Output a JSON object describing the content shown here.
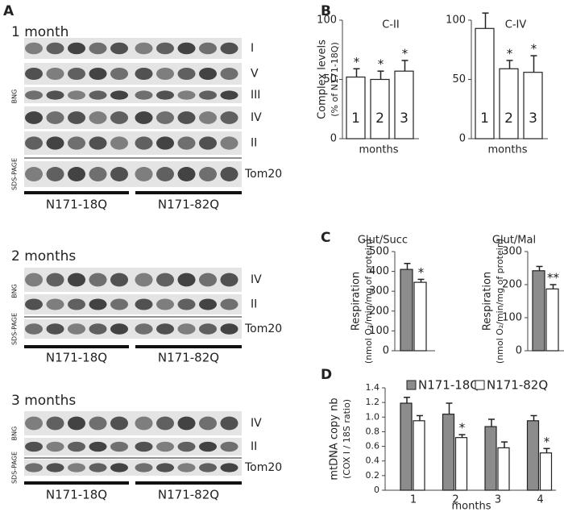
{
  "panel_a": {
    "label": "A",
    "blots": [
      {
        "title": "1 month",
        "bng": "BNG",
        "sds": "SDS-PAGE",
        "bands": [
          "I",
          "V",
          "III",
          "IV",
          "II",
          "Tom20"
        ],
        "groups": [
          "N171-18Q",
          "N171-82Q"
        ]
      },
      {
        "title": "2 months",
        "bng": "BNG",
        "sds": "SDS-PAGE",
        "bands": [
          "IV",
          "II",
          "Tom20"
        ],
        "groups": [
          "N171-18Q",
          "N171-82Q"
        ]
      },
      {
        "title": "3 months",
        "bng": "BNG",
        "sds": "SDS-PAGE",
        "bands": [
          "IV",
          "II",
          "Tom20"
        ],
        "groups": [
          "N171-18Q",
          "N171-82Q"
        ]
      }
    ]
  },
  "chart_data": [
    {
      "type": "bar",
      "label": "B",
      "title": "C-II",
      "ylabel": [
        "Complex levels",
        "(% of N171-18Q)"
      ],
      "xlabel": "months",
      "categories": [
        "1",
        "2",
        "3"
      ],
      "ylim": [
        0,
        100
      ],
      "yticks": [
        0,
        50,
        100
      ],
      "series": [
        {
          "color": "#ffffff",
          "values": [
            52,
            50,
            57
          ],
          "errors": [
            7,
            7,
            9
          ],
          "significance": [
            "*",
            "*",
            "*"
          ]
        }
      ]
    },
    {
      "type": "bar",
      "title": "C-IV",
      "xlabel": "months",
      "categories": [
        "1",
        "2",
        "3"
      ],
      "ylim": [
        0,
        100
      ],
      "yticks": [
        0,
        50,
        100
      ],
      "series": [
        {
          "color": "#ffffff",
          "values": [
            93,
            59,
            56
          ],
          "errors": [
            13,
            7,
            14
          ],
          "significance": [
            null,
            "*",
            "*"
          ]
        }
      ]
    },
    {
      "type": "bar",
      "label": "C",
      "title": "Glut/Succ",
      "ylabel": [
        "Respiration",
        "(nmol O₂/min/mg of protein)"
      ],
      "categories": [
        null
      ],
      "ylim": [
        0,
        500
      ],
      "yticks": [
        0,
        100,
        200,
        300,
        400,
        500
      ],
      "series": [
        {
          "color": "#8c8c8c",
          "values": [
            410
          ],
          "errors": [
            30
          ],
          "significance": [
            null
          ]
        },
        {
          "color": "#ffffff",
          "values": [
            345
          ],
          "errors": [
            15
          ],
          "significance": [
            "*"
          ]
        }
      ]
    },
    {
      "type": "bar",
      "title": "Glut/Mal",
      "ylabel": [
        "Respiration",
        "(nmol O₂/min/mg of protein)"
      ],
      "categories": [
        null
      ],
      "ylim": [
        0,
        300
      ],
      "yticks": [
        0,
        100,
        200,
        300
      ],
      "series": [
        {
          "color": "#8c8c8c",
          "values": [
            242
          ],
          "errors": [
            13
          ],
          "significance": [
            null
          ]
        },
        {
          "color": "#ffffff",
          "values": [
            187
          ],
          "errors": [
            13
          ],
          "significance": [
            "**"
          ]
        }
      ]
    },
    {
      "type": "bar",
      "label": "D",
      "ylabel": [
        "mtDNA copy nb",
        "(COX I / 18S ratio)"
      ],
      "xlabel": "months",
      "legend": "top",
      "categories": [
        "1",
        "2",
        "3",
        "4"
      ],
      "ylim": [
        0,
        1.4
      ],
      "yticks": [
        0,
        0.2,
        0.4,
        0.6,
        0.8,
        {
          "value": 1,
          "label": "1.0"
        },
        1.2,
        1.4
      ],
      "series": [
        {
          "name": "N171-18Q",
          "color": "#8c8c8c",
          "values": [
            1.19,
            1.04,
            0.87,
            0.95
          ],
          "errors": [
            0.08,
            0.15,
            0.1,
            0.07
          ],
          "significance": [
            null,
            null,
            null,
            null
          ]
        },
        {
          "name": "N171-82Q",
          "color": "#ffffff",
          "values": [
            0.95,
            0.72,
            0.58,
            0.51
          ],
          "errors": [
            0.07,
            0.04,
            0.08,
            0.06
          ],
          "significance": [
            null,
            "*",
            null,
            "*"
          ]
        }
      ]
    }
  ]
}
